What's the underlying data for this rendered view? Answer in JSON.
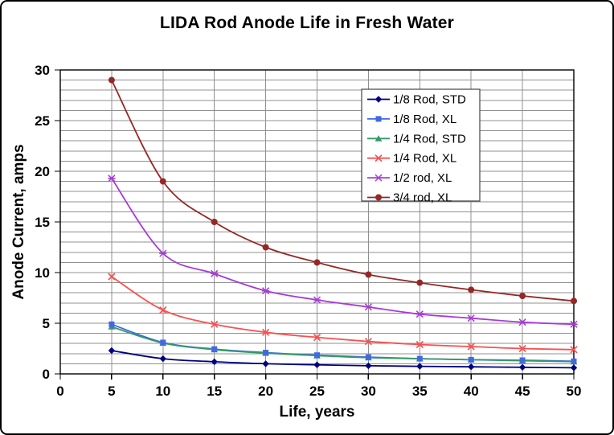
{
  "window": {
    "background": "#ffffff",
    "border_color": "#000000"
  },
  "chart_data": {
    "type": "line",
    "title": "LIDA Rod Anode Life in Fresh Water",
    "xlabel": "Life, years",
    "ylabel": "Anode Current, amps",
    "xlim": [
      0,
      50
    ],
    "ylim": [
      0,
      30
    ],
    "x_ticks": [
      0,
      5,
      10,
      15,
      20,
      25,
      30,
      35,
      40,
      45,
      50
    ],
    "y_ticks": [
      0,
      5,
      10,
      15,
      20,
      25,
      30
    ],
    "y_minor_unit": 1,
    "grid": "on",
    "gridline_color": "#909090",
    "axis_color": "#000000",
    "legend_position": "top-right-inside",
    "x": [
      5,
      10,
      15,
      20,
      25,
      30,
      35,
      40,
      45,
      50
    ],
    "series": [
      {
        "name": "1/8 Rod, STD",
        "color": "#00007F",
        "marker": "diamond",
        "values": [
          2.3,
          1.5,
          1.2,
          1.0,
          0.9,
          0.8,
          0.75,
          0.7,
          0.65,
          0.6
        ]
      },
      {
        "name": "1/8 Rod, XL",
        "color": "#4169E1",
        "marker": "square",
        "values": [
          4.9,
          3.1,
          2.45,
          2.1,
          1.85,
          1.65,
          1.5,
          1.4,
          1.35,
          1.25
        ]
      },
      {
        "name": "1/4 Rod, STD",
        "color": "#339966",
        "marker": "triangle",
        "values": [
          4.65,
          3.05,
          2.4,
          2.05,
          1.8,
          1.6,
          1.5,
          1.4,
          1.3,
          1.2
        ]
      },
      {
        "name": "1/4 Rod, XL",
        "color": "#FA5050",
        "marker": "x",
        "values": [
          9.6,
          6.3,
          4.9,
          4.1,
          3.6,
          3.2,
          2.9,
          2.7,
          2.5,
          2.4
        ]
      },
      {
        "name": "1/2 rod, XL",
        "color": "#A83AD8",
        "marker": "star",
        "values": [
          19.3,
          11.9,
          9.9,
          8.2,
          7.3,
          6.6,
          5.9,
          5.5,
          5.1,
          4.9
        ]
      },
      {
        "name": "3/4 rod, XL",
        "color": "#952826",
        "marker": "circle",
        "values": [
          29.0,
          19.0,
          15.0,
          12.5,
          11.0,
          9.8,
          9.0,
          8.3,
          7.7,
          7.2
        ]
      }
    ]
  }
}
